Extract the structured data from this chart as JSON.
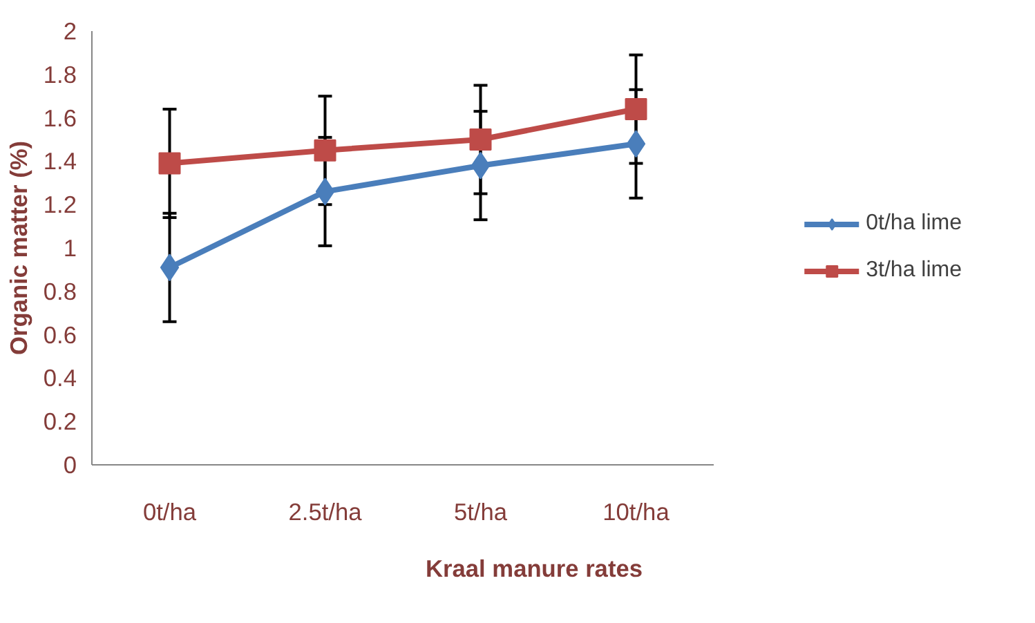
{
  "chart_data": {
    "type": "line",
    "xlabel": "Kraal manure rates",
    "ylabel": "Organic matter (%)",
    "categories": [
      "0t/ha",
      "2.5t/ha",
      "5t/ha",
      "10t/ha"
    ],
    "series": [
      {
        "name": "0t/ha lime",
        "color": "#4a7ebb",
        "marker": "diamond",
        "values": [
          0.91,
          1.26,
          1.38,
          1.48
        ],
        "errors": [
          0.25,
          0.25,
          0.25,
          0.25
        ]
      },
      {
        "name": "3t/ha lime",
        "color": "#be4b48",
        "marker": "square",
        "values": [
          1.39,
          1.45,
          1.5,
          1.64
        ],
        "errors": [
          0.25,
          0.25,
          0.25,
          0.25
        ]
      }
    ],
    "ylim": [
      0,
      2
    ],
    "yticks": [
      0,
      0.2,
      0.4,
      0.6,
      0.8,
      1,
      1.2,
      1.4,
      1.6,
      1.8,
      2
    ],
    "grid": false,
    "legend": "right",
    "line_style": "solid"
  }
}
